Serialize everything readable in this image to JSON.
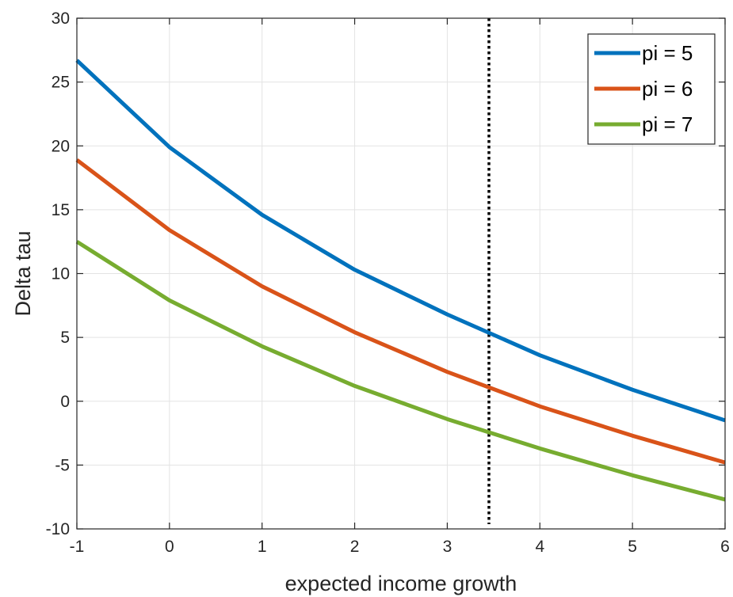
{
  "chart_data": {
    "type": "line",
    "title": "",
    "xlabel": "expected income growth",
    "ylabel": "Delta tau",
    "xlim": [
      -1,
      6
    ],
    "ylim": [
      -10,
      30
    ],
    "xticks": [
      -1,
      0,
      1,
      2,
      3,
      4,
      5,
      6
    ],
    "yticks": [
      -10,
      -5,
      0,
      5,
      10,
      15,
      20,
      25,
      30
    ],
    "grid": true,
    "legend_position": "top-right",
    "x": [
      -1,
      0,
      1,
      2,
      3,
      4,
      5,
      6
    ],
    "series": [
      {
        "name": "pi = 5",
        "color": "#0072BD",
        "values": [
          26.7,
          19.9,
          14.6,
          10.3,
          6.8,
          3.6,
          0.9,
          -1.5
        ]
      },
      {
        "name": "pi = 6",
        "color": "#D95319",
        "values": [
          18.9,
          13.4,
          9.0,
          5.4,
          2.3,
          -0.4,
          -2.7,
          -4.8
        ]
      },
      {
        "name": "pi = 7",
        "color": "#77AC30",
        "values": [
          12.5,
          7.9,
          4.3,
          1.2,
          -1.4,
          -3.7,
          -5.8,
          -7.7
        ]
      }
    ],
    "reference_line": {
      "x": 3.45,
      "style": "dotted",
      "color": "#000000"
    }
  }
}
